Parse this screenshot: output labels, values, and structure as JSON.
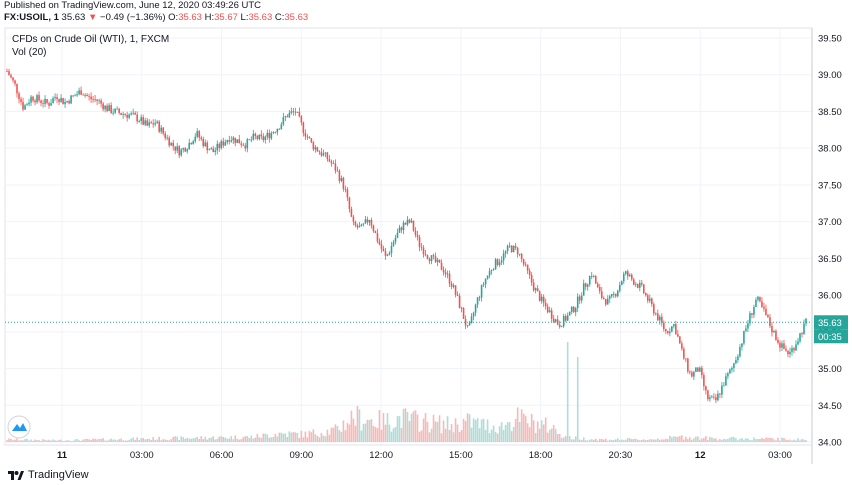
{
  "header": {
    "published": "Published on TradingView.com, June 12, 2020 03:49:26 UTC",
    "symbol": "FX:USOIL, 1",
    "last": "35.63",
    "change_arrow": "▼",
    "change": "−0.49 (−1.36%)",
    "o_label": "O:",
    "o_value": "35.63",
    "h_label": "H:",
    "h_value": "35.67",
    "l_label": "L:",
    "l_value": "35.63",
    "c_label": "C:",
    "c_value": "35.63"
  },
  "legend": {
    "title": "CFDs on Crude Oil (WTI), 1, FXCM",
    "volume": "Vol (20)"
  },
  "footer": {
    "brand": "TradingView",
    "logo_icon": "tradingview-logo-icon"
  },
  "colors": {
    "up": "#26a69a",
    "down": "#ef5350",
    "grid": "#f0f3fa",
    "price_line": "#26a69a",
    "axis_text": "#131722"
  },
  "chart_data": {
    "type": "candlestick",
    "y_axis": {
      "ticks": [
        "39.50",
        "39.00",
        "38.50",
        "38.00",
        "37.50",
        "37.00",
        "36.50",
        "36.00",
        "35.50",
        "35.00",
        "34.50",
        "34.00"
      ],
      "ylim": [
        34.0,
        39.5
      ]
    },
    "x_axis": {
      "ticks": [
        "11",
        "03:00",
        "06:00",
        "09:00",
        "12:00",
        "15:00",
        "18:00",
        "20:30",
        "12",
        "03:00"
      ]
    },
    "price_label": "35.63",
    "countdown_label": "00:35",
    "grid": true,
    "price_path": [
      [
        0,
        39.05
      ],
      [
        1,
        38.85
      ],
      [
        2,
        38.55
      ],
      [
        3,
        38.7
      ],
      [
        4,
        38.65
      ],
      [
        5,
        38.6
      ],
      [
        6,
        38.72
      ],
      [
        7,
        38.62
      ],
      [
        8,
        38.7
      ],
      [
        9,
        38.78
      ],
      [
        10,
        38.68
      ],
      [
        11,
        38.65
      ],
      [
        12,
        38.55
      ],
      [
        13,
        38.5
      ],
      [
        14,
        38.47
      ],
      [
        15,
        38.45
      ],
      [
        16,
        38.4
      ],
      [
        17,
        38.3
      ],
      [
        18,
        38.35
      ],
      [
        19,
        38.2
      ],
      [
        20,
        38.05
      ],
      [
        21,
        37.95
      ],
      [
        22,
        38.05
      ],
      [
        23,
        38.2
      ],
      [
        24,
        38.05
      ],
      [
        25,
        37.95
      ],
      [
        26,
        38.05
      ],
      [
        27,
        38.15
      ],
      [
        28,
        38.1
      ],
      [
        29,
        38.05
      ],
      [
        30,
        38.15
      ],
      [
        31,
        38.12
      ],
      [
        32,
        38.2
      ],
      [
        33,
        38.3
      ],
      [
        34,
        38.45
      ],
      [
        35,
        38.5
      ],
      [
        36,
        38.25
      ],
      [
        37,
        38.05
      ],
      [
        38,
        37.95
      ],
      [
        39,
        37.85
      ],
      [
        40,
        37.7
      ],
      [
        41,
        37.45
      ],
      [
        42,
        36.95
      ],
      [
        43,
        36.9
      ],
      [
        44,
        37.05
      ],
      [
        45,
        36.75
      ],
      [
        46,
        36.5
      ],
      [
        47,
        36.75
      ],
      [
        48,
        36.95
      ],
      [
        49,
        37.0
      ],
      [
        50,
        36.7
      ],
      [
        51,
        36.55
      ],
      [
        52,
        36.45
      ],
      [
        53,
        36.35
      ],
      [
        54,
        36.15
      ],
      [
        55,
        35.85
      ],
      [
        56,
        35.5
      ],
      [
        57,
        35.9
      ],
      [
        58,
        36.2
      ],
      [
        59,
        36.4
      ],
      [
        60,
        36.5
      ],
      [
        61,
        36.65
      ],
      [
        62,
        36.6
      ],
      [
        63,
        36.35
      ],
      [
        64,
        36.1
      ],
      [
        65,
        35.9
      ],
      [
        66,
        35.75
      ],
      [
        67,
        35.6
      ],
      [
        68,
        35.7
      ],
      [
        69,
        35.85
      ],
      [
        70,
        36.1
      ],
      [
        71,
        36.3
      ],
      [
        72,
        36.0
      ],
      [
        73,
        35.9
      ],
      [
        74,
        36.05
      ],
      [
        75,
        36.3
      ],
      [
        76,
        36.2
      ],
      [
        77,
        36.1
      ],
      [
        78,
        35.9
      ],
      [
        79,
        35.7
      ],
      [
        80,
        35.5
      ],
      [
        81,
        35.6
      ],
      [
        82,
        35.2
      ],
      [
        83,
        34.9
      ],
      [
        84,
        35.0
      ],
      [
        85,
        34.6
      ],
      [
        86,
        34.55
      ],
      [
        87,
        34.8
      ],
      [
        88,
        35.0
      ],
      [
        89,
        35.3
      ],
      [
        90,
        35.65
      ],
      [
        91,
        35.95
      ],
      [
        92,
        35.75
      ],
      [
        93,
        35.5
      ],
      [
        94,
        35.3
      ],
      [
        95,
        35.2
      ],
      [
        96,
        35.4
      ],
      [
        97,
        35.63
      ]
    ],
    "volume_profile": [
      [
        0,
        3
      ],
      [
        6,
        2
      ],
      [
        12,
        3
      ],
      [
        18,
        4
      ],
      [
        24,
        5
      ],
      [
        30,
        6
      ],
      [
        33,
        10
      ],
      [
        36,
        9
      ],
      [
        40,
        14
      ],
      [
        42,
        30
      ],
      [
        44,
        26
      ],
      [
        46,
        24
      ],
      [
        48,
        28
      ],
      [
        50,
        25
      ],
      [
        52,
        22
      ],
      [
        54,
        20
      ],
      [
        56,
        24
      ],
      [
        58,
        20
      ],
      [
        60,
        18
      ],
      [
        62,
        28
      ],
      [
        64,
        22
      ],
      [
        66,
        18
      ],
      [
        68,
        5
      ],
      [
        72,
        3
      ],
      [
        78,
        3
      ],
      [
        82,
        6
      ],
      [
        86,
        4
      ],
      [
        90,
        4
      ],
      [
        97,
        3
      ]
    ]
  }
}
